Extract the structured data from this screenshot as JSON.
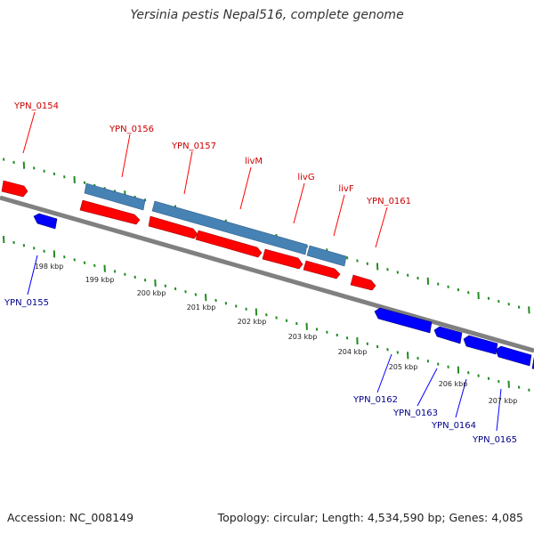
{
  "title": "Yersinia pestis Nepal516, complete genome",
  "footer": {
    "accession": "Accession: NC_008149",
    "stats": "Topology: circular; Length: 4,534,590 bp; Genes: 4,085"
  },
  "colors": {
    "forward_cds": "#ff0000",
    "reverse_cds": "#0000ff",
    "gene": "#4682b4",
    "backbone": "#808080",
    "ticks": "#228b22",
    "forward_label": "#cc0000",
    "reverse_label": "#00008b"
  },
  "scale_labels": [
    "198 kbp",
    "199 kbp",
    "200 kbp",
    "201 kbp",
    "202 kbp",
    "203 kbp",
    "204 kbp",
    "205 kbp",
    "206 kbp",
    "207 kbp"
  ],
  "forward_labels": [
    "YPN_0154",
    "YPN_0156",
    "YPN_0157",
    "livM",
    "livG",
    "livF",
    "YPN_0161"
  ],
  "reverse_labels": [
    "YPN_0155",
    "YPN_0162",
    "YPN_0163",
    "YPN_0164",
    "YPN_0165"
  ]
}
